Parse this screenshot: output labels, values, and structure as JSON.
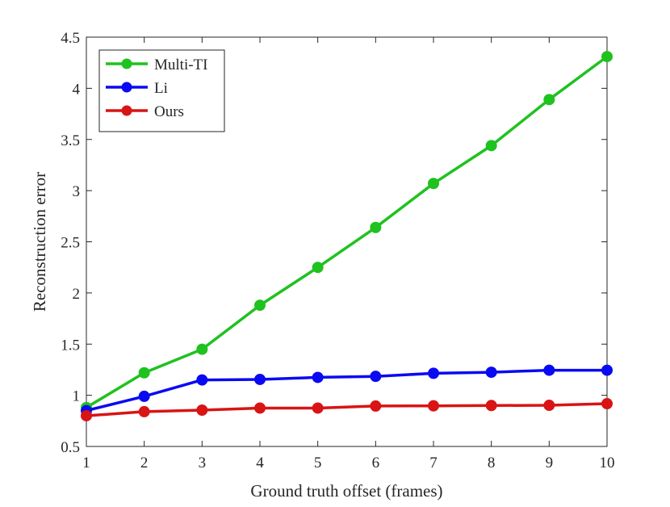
{
  "chart_data": {
    "type": "line",
    "xlabel": "Ground truth offset (frames)",
    "ylabel": "Reconstruction error",
    "xlim": [
      1,
      10
    ],
    "ylim": [
      0.5,
      4.5
    ],
    "x": [
      1,
      2,
      3,
      4,
      5,
      6,
      7,
      8,
      9,
      10
    ],
    "x_ticks": [
      "1",
      "2",
      "3",
      "4",
      "5",
      "6",
      "7",
      "8",
      "9",
      "10"
    ],
    "y_ticks": [
      "0.5",
      "1",
      "1.5",
      "2",
      "2.5",
      "3",
      "3.5",
      "4",
      "4.5"
    ],
    "grid": false,
    "legend_position": "top-left",
    "series": [
      {
        "name": "Multi-TI",
        "color": "#1fc21f",
        "marker": "circle",
        "values": [
          0.88,
          1.22,
          1.45,
          1.88,
          2.25,
          2.64,
          3.07,
          3.44,
          3.89,
          4.31
        ]
      },
      {
        "name": "Li",
        "color": "#0a0af2",
        "marker": "circle",
        "values": [
          0.85,
          0.99,
          1.15,
          1.155,
          1.175,
          1.185,
          1.215,
          1.225,
          1.245,
          1.245
        ]
      },
      {
        "name": "Ours",
        "color": "#d91414",
        "marker": "circle",
        "values": [
          0.8,
          0.84,
          0.855,
          0.875,
          0.875,
          0.895,
          0.897,
          0.9,
          0.902,
          0.918
        ]
      }
    ]
  }
}
